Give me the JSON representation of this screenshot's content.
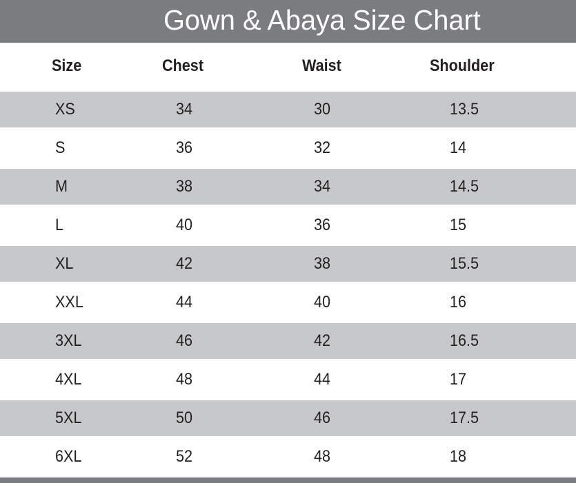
{
  "title": "Gown & Abaya Size Chart",
  "columns": [
    "Size",
    "Chest",
    "Waist",
    "Shoulder"
  ],
  "rows": [
    [
      "XS",
      "34",
      "30",
      "13.5"
    ],
    [
      "S",
      "36",
      "32",
      "14"
    ],
    [
      "M",
      "38",
      "34",
      "14.5"
    ],
    [
      "L",
      "40",
      "36",
      "15"
    ],
    [
      "XL",
      "42",
      "38",
      "15.5"
    ],
    [
      "XXL",
      "44",
      "40",
      "16"
    ],
    [
      "3XL",
      "46",
      "42",
      "16.5"
    ],
    [
      "4XL",
      "48",
      "44",
      "17"
    ],
    [
      "5XL",
      "50",
      "46",
      "17.5"
    ],
    [
      "6XL",
      "52",
      "48",
      "18"
    ]
  ],
  "colors": {
    "title_bar": "#7b7c80",
    "stripe": "#c7c8ca",
    "text": "#231f20"
  }
}
